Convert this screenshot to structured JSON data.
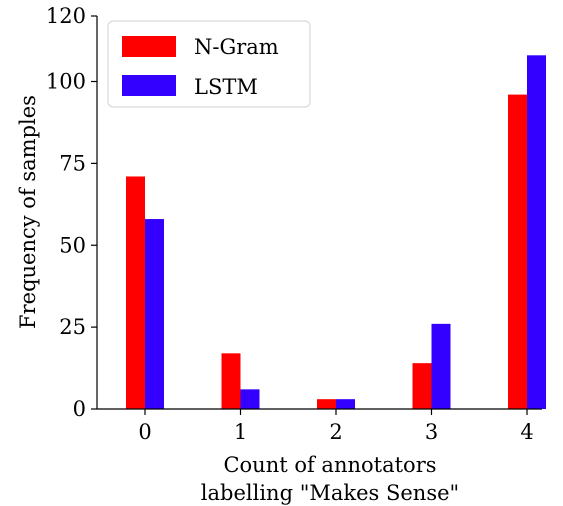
{
  "chart_data": {
    "type": "bar",
    "title": "",
    "xlabel": [
      "Count of annotators",
      "labelling \"Makes Sense\""
    ],
    "ylabel": "Frequency of samples",
    "categories": [
      "0",
      "1",
      "2",
      "3",
      "4"
    ],
    "y_ticks": [
      "0",
      "25",
      "50",
      "75",
      "100",
      "120"
    ],
    "y_tick_values": [
      0,
      25,
      50,
      75,
      100,
      120
    ],
    "ylim": [
      0,
      120
    ],
    "grid": false,
    "legend_position": "top-left",
    "series": [
      {
        "name": "N-Gram",
        "color": "#ff0000",
        "values": [
          71,
          17,
          3,
          14,
          96
        ]
      },
      {
        "name": "LSTM",
        "color": "#3300ff",
        "values": [
          58,
          6,
          3,
          26,
          108
        ]
      }
    ]
  }
}
